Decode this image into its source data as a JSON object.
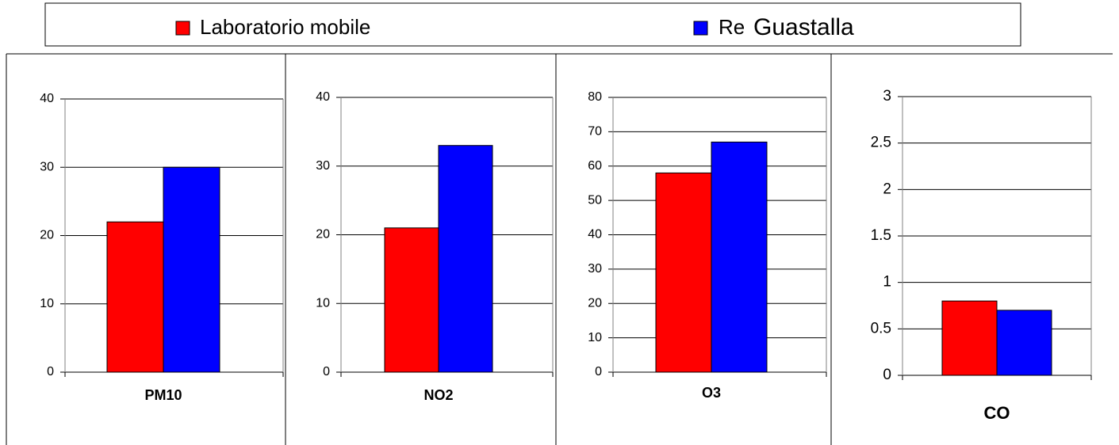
{
  "legend": [
    {
      "name": "Laboratorio mobile",
      "color": "#ff0000"
    },
    {
      "name": "Guastalla",
      "color": "#0000ff"
    }
  ],
  "legend_hidden_text": "Re",
  "chart_data": [
    {
      "type": "bar",
      "categories": [
        "PM10"
      ],
      "series": [
        {
          "values": [
            22
          ]
        },
        {
          "values": [
            30
          ]
        }
      ],
      "ylim": [
        0,
        40
      ],
      "yticks": [
        0,
        10,
        20,
        30,
        40
      ],
      "grid": true
    },
    {
      "type": "bar",
      "categories": [
        "NO2"
      ],
      "series": [
        {
          "values": [
            21
          ]
        },
        {
          "values": [
            33
          ]
        }
      ],
      "ylim": [
        0,
        40
      ],
      "yticks": [
        0,
        10,
        20,
        30,
        40
      ],
      "grid": true
    },
    {
      "type": "bar",
      "categories": [
        "O3"
      ],
      "series": [
        {
          "values": [
            58
          ]
        },
        {
          "values": [
            67
          ]
        }
      ],
      "ylim": [
        0,
        80
      ],
      "yticks": [
        0,
        10,
        20,
        30,
        40,
        50,
        60,
        70,
        80
      ],
      "grid": true
    },
    {
      "type": "bar",
      "categories": [
        "CO"
      ],
      "series": [
        {
          "values": [
            0.8
          ]
        },
        {
          "values": [
            0.7
          ]
        }
      ],
      "ylim": [
        0,
        3
      ],
      "yticks": [
        0,
        0.5,
        1,
        1.5,
        2,
        2.5,
        3
      ],
      "grid": true
    }
  ]
}
